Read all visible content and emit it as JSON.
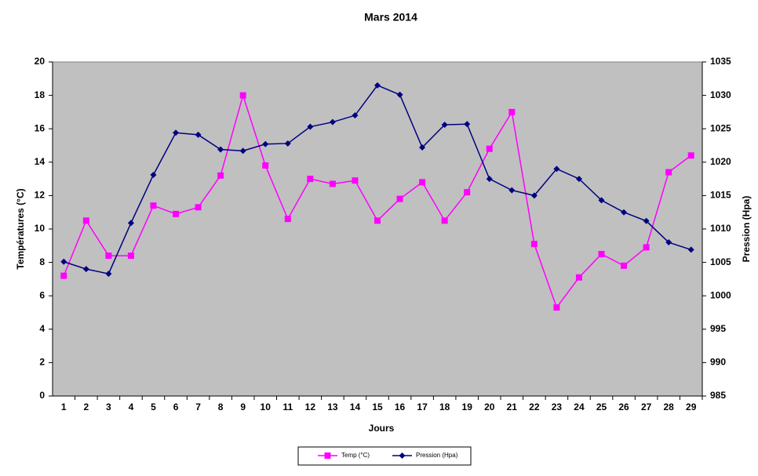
{
  "chart_data": {
    "type": "line",
    "title": "Mars 2014",
    "x_label": "Jours",
    "y_label": "Températures (°C)",
    "y2_label": "Pression (Hpa)",
    "categories": [
      "1",
      "2",
      "3",
      "4",
      "5",
      "6",
      "7",
      "8",
      "9",
      "10",
      "11",
      "12",
      "13",
      "14",
      "15",
      "16",
      "17",
      "18",
      "19",
      "20",
      "21",
      "22",
      "23",
      "24",
      "25",
      "26",
      "27",
      "28",
      "29"
    ],
    "series": [
      {
        "name": "Temp (°C)",
        "color": "#ff00ff",
        "marker": "square",
        "values": [
          7.2,
          10.5,
          8.4,
          8.4,
          11.4,
          10.9,
          11.3,
          13.2,
          18.0,
          13.8,
          10.6,
          13.0,
          12.7,
          12.9,
          10.5,
          11.8,
          12.8,
          10.5,
          12.2,
          14.8,
          17.0,
          9.1,
          5.3,
          7.1,
          8.5,
          7.8,
          8.9,
          13.4,
          14.4
        ]
      },
      {
        "name": "Pression (Hpa)",
        "color": "#000080",
        "marker": "diamond",
        "axis": "y2",
        "values": [
          1005.1,
          1004.0,
          1003.3,
          1010.9,
          1018.1,
          1024.4,
          1024.1,
          1021.9,
          1021.7,
          1022.7,
          1022.8,
          1025.3,
          1026.0,
          1027.0,
          1031.5,
          1030.1,
          1022.2,
          1025.6,
          1025.7,
          1017.5,
          1015.8,
          1015.0,
          1019.0,
          1017.5,
          1014.3,
          1012.5,
          1011.2,
          1008.0,
          1006.9
        ]
      }
    ],
    "ylim": [
      0,
      20
    ],
    "yticks": [
      0,
      2,
      4,
      6,
      8,
      10,
      12,
      14,
      16,
      18,
      20
    ],
    "y2lim": [
      985,
      1035
    ],
    "y2ticks": [
      985,
      990,
      995,
      1000,
      1005,
      1010,
      1015,
      1020,
      1025,
      1030,
      1035
    ],
    "grid": false,
    "legend": "bottom"
  }
}
